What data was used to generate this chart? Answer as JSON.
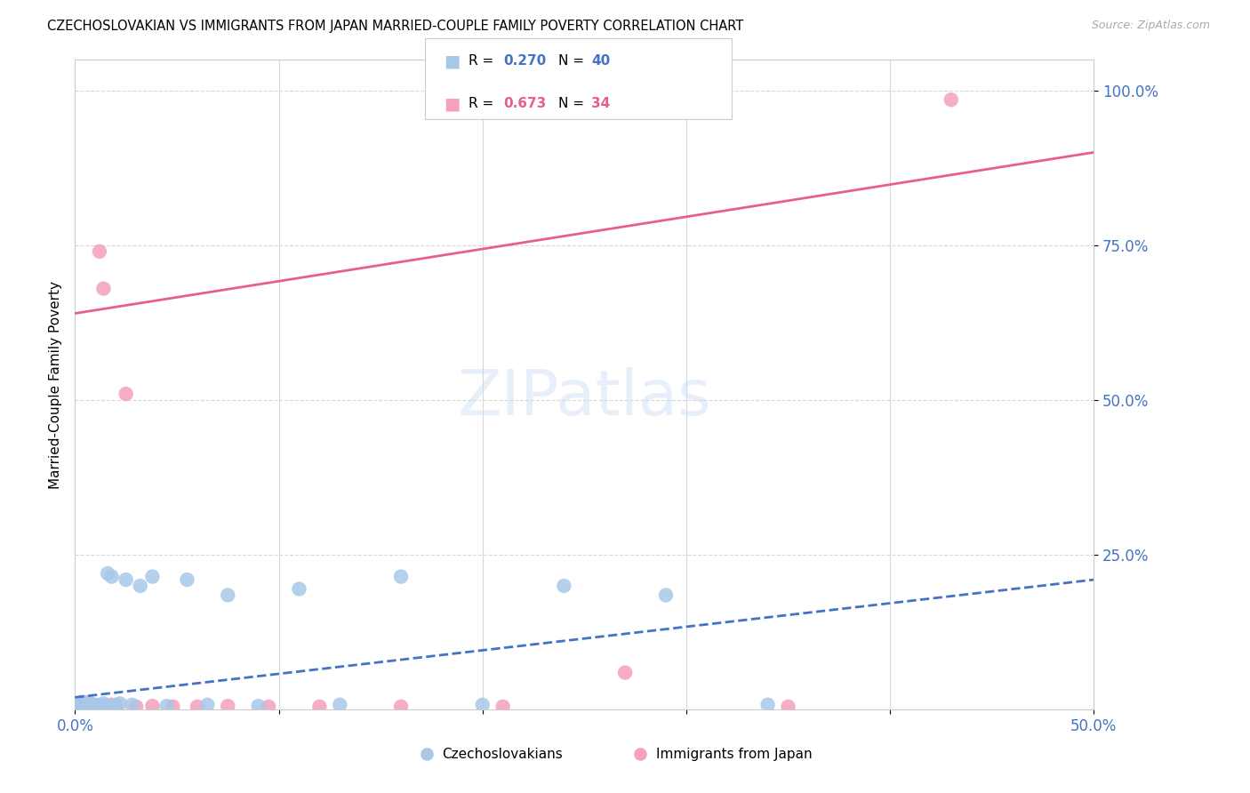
{
  "title": "CZECHOSLOVAKIAN VS IMMIGRANTS FROM JAPAN MARRIED-COUPLE FAMILY POVERTY CORRELATION CHART",
  "source": "Source: ZipAtlas.com",
  "ylabel": "Married-Couple Family Poverty",
  "background_color": "#ffffff",
  "blue_color": "#a8c8e8",
  "pink_color": "#f5a0be",
  "blue_line_color": "#4472c4",
  "pink_line_color": "#e8608a",
  "axis_label_color": "#4472c4",
  "grid_color": "#d8d8d8",
  "legend_r1": "0.270",
  "legend_n1": "40",
  "legend_r2": "0.673",
  "legend_n2": "34",
  "blue_line_intercept": 0.02,
  "blue_line_slope": 0.38,
  "pink_line_intercept": 0.64,
  "pink_line_slope": 0.52,
  "xlim": [
    0.0,
    0.5
  ],
  "ylim": [
    0.0,
    1.05
  ],
  "czecho_x": [
    0.001,
    0.002,
    0.002,
    0.003,
    0.003,
    0.004,
    0.004,
    0.005,
    0.005,
    0.006,
    0.006,
    0.007,
    0.008,
    0.009,
    0.01,
    0.011,
    0.012,
    0.013,
    0.014,
    0.015,
    0.016,
    0.018,
    0.02,
    0.022,
    0.025,
    0.028,
    0.032,
    0.038,
    0.045,
    0.055,
    0.065,
    0.075,
    0.09,
    0.11,
    0.13,
    0.16,
    0.2,
    0.24,
    0.29,
    0.34
  ],
  "czecho_y": [
    0.008,
    0.006,
    0.01,
    0.007,
    0.012,
    0.008,
    0.012,
    0.007,
    0.01,
    0.008,
    0.006,
    0.01,
    0.008,
    0.005,
    0.007,
    0.006,
    0.008,
    0.006,
    0.01,
    0.006,
    0.22,
    0.215,
    0.008,
    0.01,
    0.21,
    0.008,
    0.2,
    0.215,
    0.006,
    0.21,
    0.008,
    0.185,
    0.006,
    0.195,
    0.008,
    0.215,
    0.008,
    0.2,
    0.185,
    0.008
  ],
  "japan_x": [
    0.001,
    0.002,
    0.003,
    0.003,
    0.004,
    0.004,
    0.005,
    0.005,
    0.006,
    0.006,
    0.007,
    0.008,
    0.008,
    0.009,
    0.01,
    0.011,
    0.012,
    0.014,
    0.016,
    0.018,
    0.02,
    0.025,
    0.03,
    0.038,
    0.048,
    0.06,
    0.075,
    0.095,
    0.12,
    0.16,
    0.21,
    0.27,
    0.35,
    0.43
  ],
  "japan_y": [
    0.005,
    0.008,
    0.004,
    0.008,
    0.005,
    0.01,
    0.005,
    0.012,
    0.005,
    0.008,
    0.005,
    0.006,
    0.01,
    0.005,
    0.007,
    0.005,
    0.74,
    0.68,
    0.005,
    0.008,
    0.005,
    0.51,
    0.005,
    0.006,
    0.005,
    0.005,
    0.006,
    0.005,
    0.005,
    0.005,
    0.005,
    0.06,
    0.005,
    0.985
  ]
}
